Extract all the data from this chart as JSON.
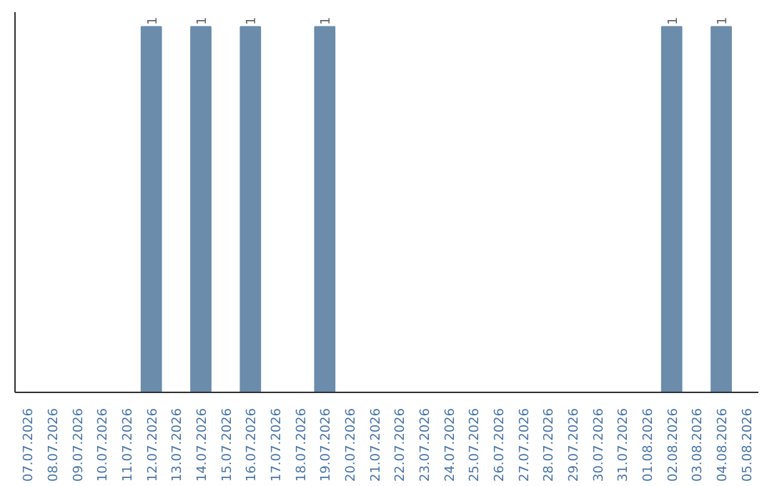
{
  "chart_data": {
    "type": "bar",
    "categories": [
      "07.07.2026",
      "08.07.2026",
      "09.07.2026",
      "10.07.2026",
      "11.07.2026",
      "12.07.2026",
      "13.07.2026",
      "14.07.2026",
      "15.07.2026",
      "16.07.2026",
      "17.07.2026",
      "18.07.2026",
      "19.07.2026",
      "20.07.2026",
      "21.07.2026",
      "22.07.2026",
      "23.07.2026",
      "24.07.2026",
      "25.07.2026",
      "26.07.2026",
      "27.07.2026",
      "28.07.2026",
      "29.07.2026",
      "30.07.2026",
      "31.07.2026",
      "01.08.2026",
      "02.08.2026",
      "03.08.2026",
      "04.08.2026",
      "05.08.2026"
    ],
    "values": [
      0,
      0,
      0,
      0,
      0,
      1,
      0,
      1,
      0,
      1,
      0,
      0,
      1,
      0,
      0,
      0,
      0,
      0,
      0,
      0,
      0,
      0,
      0,
      0,
      0,
      0,
      1,
      0,
      1,
      0
    ],
    "value_labels": [
      null,
      null,
      null,
      null,
      null,
      "1",
      null,
      "1",
      null,
      "1",
      null,
      null,
      "1",
      null,
      null,
      null,
      null,
      null,
      null,
      null,
      null,
      null,
      null,
      null,
      null,
      null,
      "1",
      null,
      "1",
      null
    ],
    "color": "#6b8cab",
    "grid": false
  }
}
